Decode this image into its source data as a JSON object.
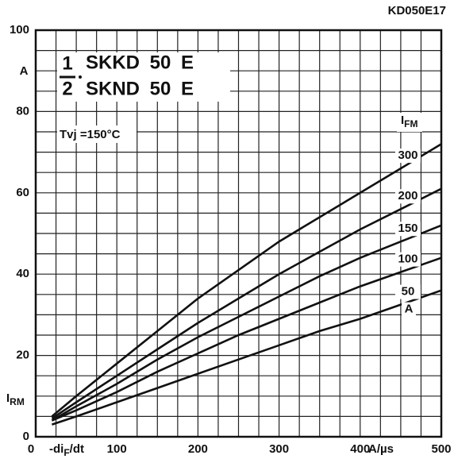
{
  "chart_data": {
    "type": "line",
    "code": "KD050E17",
    "fraction": {
      "numerator": "1",
      "denominator": "2"
    },
    "title_lines": [
      "SKKD 50 E",
      "SKND 50 E"
    ],
    "annotation": "Tvj =150°C",
    "ylabel": "I",
    "ylabel_sub": "RM",
    "yunit": "A",
    "xlabel": "-di",
    "xlabel_sub": "F",
    "xlabel_end": "/dt",
    "xunit": "A/µs",
    "legend_title": "I",
    "legend_title_sub": "FM",
    "series_unit": "A",
    "x": [
      20,
      50,
      100,
      150,
      200,
      250,
      300,
      350,
      400,
      450,
      500
    ],
    "series": [
      {
        "name": "300",
        "color": "#111",
        "values": [
          5,
          10,
          18,
          26,
          34,
          41,
          48,
          54,
          60,
          66,
          72
        ]
      },
      {
        "name": "200",
        "color": "#111",
        "values": [
          4.5,
          8.5,
          15,
          21.5,
          28,
          34,
          40,
          45.5,
          51,
          56,
          61
        ]
      },
      {
        "name": "150",
        "color": "#111",
        "values": [
          4,
          7.5,
          13,
          19,
          24.5,
          29.5,
          34.5,
          39.5,
          44,
          48,
          52
        ]
      },
      {
        "name": "100",
        "color": "#111",
        "values": [
          4,
          6.5,
          11,
          16,
          20.5,
          25,
          29,
          33,
          37,
          40.5,
          44
        ]
      },
      {
        "name": "50",
        "color": "#111",
        "values": [
          3,
          5,
          8.5,
          12,
          15.5,
          19,
          22.5,
          26,
          29,
          32.5,
          36
        ]
      }
    ],
    "xlim": [
      0,
      500
    ],
    "xticks": [
      0,
      100,
      200,
      300,
      400,
      500
    ],
    "ylim": [
      0,
      100
    ],
    "yticks": [
      0,
      20,
      40,
      60,
      80,
      100
    ],
    "grid": true
  }
}
